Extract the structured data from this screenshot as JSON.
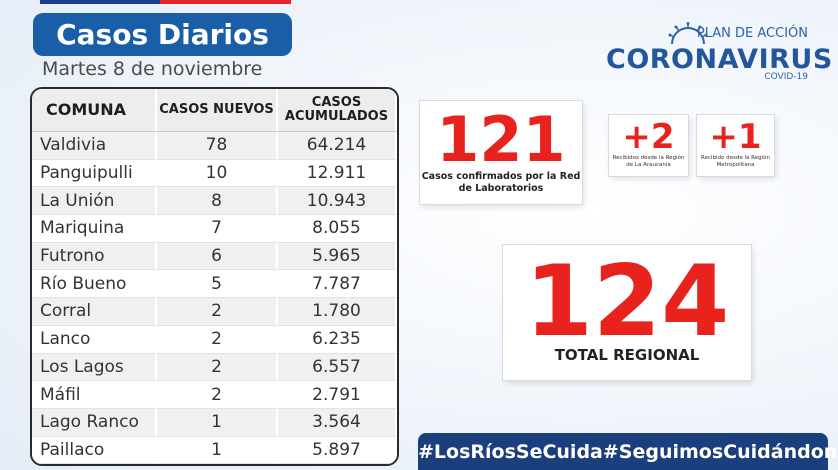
{
  "header": {
    "title": "Casos Diarios",
    "date": "Martes 8  de noviembre"
  },
  "logo": {
    "plan": "PLAN DE ACCIÓN",
    "brand": "CORONAVIRUS",
    "sub": "COVID-19",
    "icon": "virus-icon"
  },
  "table": {
    "headers": [
      "COMUNA",
      "CASOS NUEVOS",
      "CASOS ACUMULADOS"
    ],
    "rows": [
      [
        "Valdivia",
        "78",
        "64.214"
      ],
      [
        "Panguipulli",
        "10",
        "12.911"
      ],
      [
        "La Unión",
        "8",
        "10.943"
      ],
      [
        "Mariquina",
        "7",
        "8.055"
      ],
      [
        "Futrono",
        "6",
        "5.965"
      ],
      [
        "Río Bueno",
        "5",
        "7.787"
      ],
      [
        "Corral",
        "2",
        "1.780"
      ],
      [
        "Lanco",
        "2",
        "6.235"
      ],
      [
        "Los Lagos",
        "2",
        "6.557"
      ],
      [
        "Máfil",
        "2",
        "2.791"
      ],
      [
        "Lago Ranco",
        "1",
        "3.564"
      ],
      [
        "Paillaco",
        "1",
        "5.897"
      ]
    ]
  },
  "stats": {
    "lab": {
      "value": "121",
      "label": "Casos confirmados por la Red de Laboratorios"
    },
    "araucania": {
      "value": "+2",
      "label": "Recibidos desde la Región de La Araucanía"
    },
    "metropolitana": {
      "value": "+1",
      "label": "Recibido desde la Región Metropolitana"
    },
    "total": {
      "value": "124",
      "label": "TOTAL REGIONAL"
    }
  },
  "hashtags": [
    "#LosRíosSeCuida",
    "#SeguimosCuidándonos"
  ],
  "colors": {
    "accent_blue": "#1b5ea8",
    "red": "#e8231d",
    "navy": "#1b3f7d"
  }
}
